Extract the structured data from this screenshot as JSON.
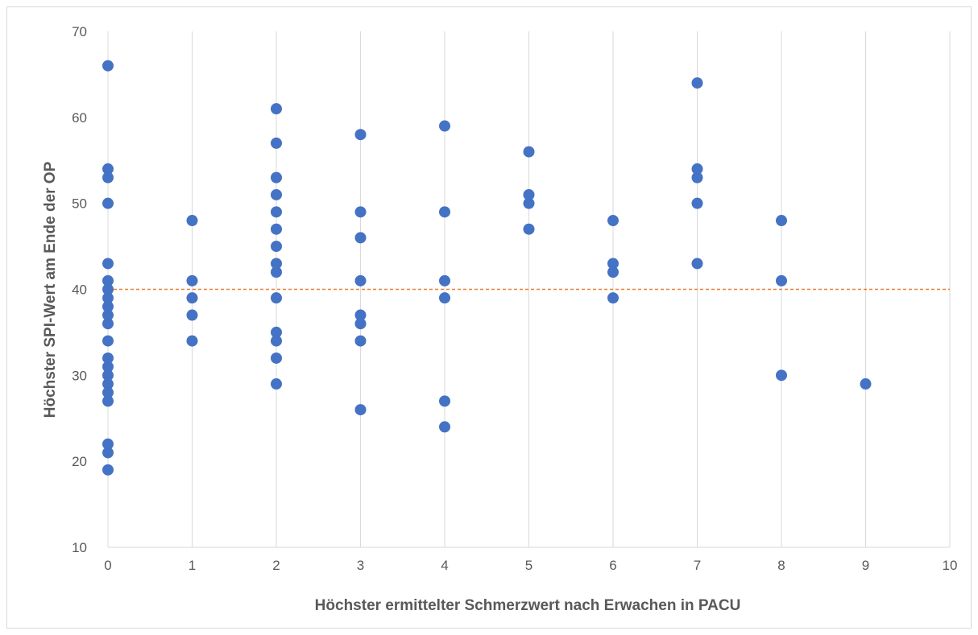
{
  "chart_data": {
    "type": "scatter",
    "title": "",
    "xlabel": "Höchster ermittelter Schmerzwert nach Erwachen in PACU",
    "ylabel": "Höchster SPI-Wert am Ende der OP",
    "xlim": [
      0,
      10
    ],
    "ylim": [
      10,
      70
    ],
    "x_ticks": [
      "0",
      "1",
      "2",
      "3",
      "4",
      "5",
      "6",
      "7",
      "8",
      "9",
      "10"
    ],
    "y_ticks": [
      "10",
      "20",
      "30",
      "40",
      "50",
      "60",
      "70"
    ],
    "grid": "vertical",
    "legend": "none",
    "reference_line": {
      "y": 40,
      "color": "#ed7d31",
      "style": "dashed"
    },
    "point_color": "#4472c4",
    "points": [
      [
        0,
        66
      ],
      [
        0,
        54
      ],
      [
        0,
        53
      ],
      [
        0,
        50
      ],
      [
        0,
        43
      ],
      [
        0,
        41
      ],
      [
        0,
        40
      ],
      [
        0,
        39
      ],
      [
        0,
        38
      ],
      [
        0,
        37
      ],
      [
        0,
        36
      ],
      [
        0,
        34
      ],
      [
        0,
        32
      ],
      [
        0,
        31
      ],
      [
        0,
        30
      ],
      [
        0,
        29
      ],
      [
        0,
        28
      ],
      [
        0,
        27
      ],
      [
        0,
        22
      ],
      [
        0,
        21
      ],
      [
        0,
        19
      ],
      [
        1,
        48
      ],
      [
        1,
        41
      ],
      [
        1,
        39
      ],
      [
        1,
        37
      ],
      [
        1,
        34
      ],
      [
        2,
        61
      ],
      [
        2,
        57
      ],
      [
        2,
        53
      ],
      [
        2,
        51
      ],
      [
        2,
        49
      ],
      [
        2,
        47
      ],
      [
        2,
        45
      ],
      [
        2,
        43
      ],
      [
        2,
        42
      ],
      [
        2,
        39
      ],
      [
        2,
        35
      ],
      [
        2,
        34
      ],
      [
        2,
        32
      ],
      [
        2,
        29
      ],
      [
        3,
        58
      ],
      [
        3,
        49
      ],
      [
        3,
        46
      ],
      [
        3,
        41
      ],
      [
        3,
        37
      ],
      [
        3,
        36
      ],
      [
        3,
        34
      ],
      [
        3,
        26
      ],
      [
        4,
        59
      ],
      [
        4,
        49
      ],
      [
        4,
        41
      ],
      [
        4,
        39
      ],
      [
        4,
        27
      ],
      [
        4,
        24
      ],
      [
        5,
        56
      ],
      [
        5,
        51
      ],
      [
        5,
        50
      ],
      [
        5,
        47
      ],
      [
        6,
        48
      ],
      [
        6,
        43
      ],
      [
        6,
        42
      ],
      [
        6,
        39
      ],
      [
        7,
        64
      ],
      [
        7,
        54
      ],
      [
        7,
        53
      ],
      [
        7,
        50
      ],
      [
        7,
        43
      ],
      [
        8,
        48
      ],
      [
        8,
        41
      ],
      [
        8,
        30
      ],
      [
        9,
        29
      ]
    ]
  }
}
